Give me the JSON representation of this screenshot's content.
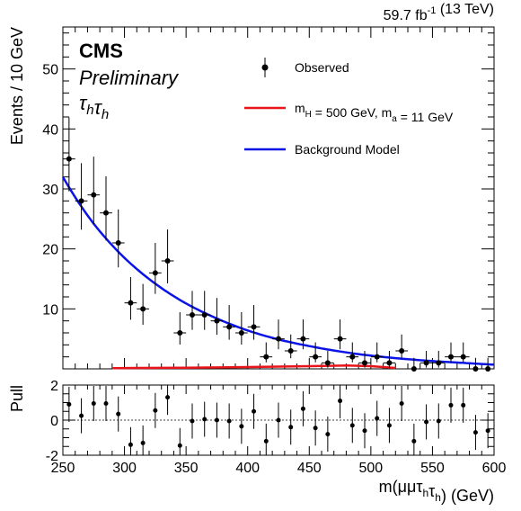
{
  "header": {
    "experiment": "CMS",
    "status": "Preliminary",
    "channel": "τ_hτ_h",
    "luminosity": "59.7 fb^-1 (13 TeV)"
  },
  "legend": {
    "observed": "Observed",
    "signal": "m_H = 500 GeV, m_a = 11 GeV",
    "background": "Background Model"
  },
  "colors": {
    "observed": "#000000",
    "signal": "#e8141a",
    "background": "#0a14e6"
  },
  "chart_data": {
    "type": "scatter",
    "x_label": "m(μμτ_hτ_h) (GeV)",
    "x_range": [
      250,
      600
    ],
    "x_ticks": [
      250,
      300,
      350,
      400,
      450,
      500,
      550,
      600
    ],
    "bin_width": 10,
    "main_panel": {
      "y_label": "Events / 10 GeV",
      "y_range": [
        0,
        57
      ],
      "y_ticks": [
        10,
        20,
        30,
        40,
        50
      ],
      "observed": {
        "name": "Observed",
        "x": [
          255,
          265,
          275,
          285,
          295,
          305,
          315,
          325,
          335,
          345,
          355,
          365,
          375,
          385,
          395,
          405,
          415,
          425,
          435,
          445,
          455,
          465,
          475,
          485,
          495,
          505,
          515,
          525,
          535,
          545,
          555,
          565,
          575,
          585,
          595
        ],
        "y": [
          35,
          28,
          29,
          26,
          21,
          11,
          10,
          16,
          18,
          6,
          9,
          9,
          8,
          7,
          6,
          7,
          2,
          5,
          3,
          5,
          2,
          1,
          5,
          2,
          1,
          2,
          1,
          3,
          0,
          1,
          1,
          2,
          2,
          0,
          0
        ]
      },
      "signal": {
        "name": "m_H = 500 GeV, m_a = 11 GeV",
        "x": [
          290,
          310,
          350,
          400,
          450,
          480,
          500,
          520
        ],
        "y": [
          0.1,
          0.15,
          0.2,
          0.3,
          0.45,
          0.55,
          0.45,
          0.15
        ]
      },
      "background": {
        "name": "Background Model",
        "x": [
          250,
          275,
          300,
          325,
          350,
          375,
          400,
          425,
          450,
          475,
          500,
          525,
          550,
          575,
          600
        ],
        "y": [
          32,
          24.2,
          18.5,
          14.2,
          10.9,
          8.4,
          6.4,
          4.9,
          3.8,
          2.9,
          2.2,
          1.7,
          1.3,
          1.0,
          0.7
        ]
      }
    },
    "pull_panel": {
      "y_label": "Pull",
      "y_range": [
        -2,
        2
      ],
      "y_ticks": [
        -2,
        0,
        2
      ],
      "x": [
        255,
        265,
        275,
        285,
        295,
        305,
        315,
        325,
        335,
        345,
        355,
        365,
        375,
        385,
        395,
        405,
        415,
        425,
        435,
        445,
        455,
        465,
        475,
        485,
        495,
        505,
        515,
        525,
        535,
        545,
        555,
        565,
        575,
        585,
        595
      ],
      "values": [
        0.9,
        0.25,
        0.95,
        0.95,
        0.35,
        -1.4,
        -1.3,
        0.55,
        1.3,
        -1.45,
        -0.05,
        0.05,
        0.0,
        -0.05,
        -0.35,
        0.5,
        -1.2,
        0.0,
        -0.4,
        0.65,
        -0.45,
        -0.8,
        1.1,
        -0.3,
        -0.6,
        0.1,
        -0.3,
        0.95,
        -1.2,
        -0.1,
        -0.05,
        0.85,
        0.85,
        -0.7,
        -0.6
      ]
    }
  }
}
